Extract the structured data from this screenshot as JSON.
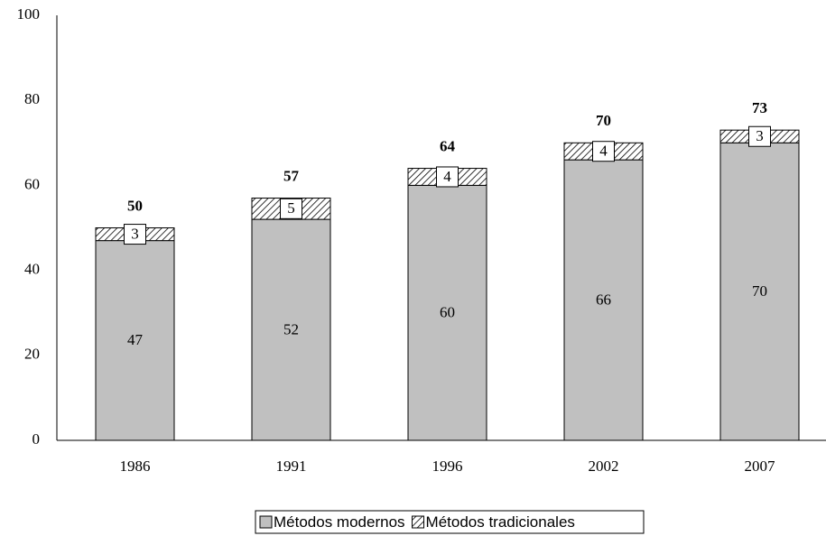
{
  "chart_data": {
    "type": "stacked_bar",
    "categories": [
      "1986",
      "1991",
      "1996",
      "2002",
      "2007"
    ],
    "series": [
      {
        "name": "Métodos modernos",
        "color": "#c0c0c0",
        "values": [
          47,
          52,
          60,
          66,
          70
        ]
      },
      {
        "name": "Métodos tradicionales",
        "color": "hatch",
        "values": [
          3,
          5,
          4,
          4,
          3
        ]
      }
    ],
    "totals": [
      50,
      57,
      64,
      70,
      73
    ],
    "ylim": [
      0,
      100
    ],
    "yticks": [
      0,
      20,
      40,
      60,
      80,
      100
    ]
  }
}
